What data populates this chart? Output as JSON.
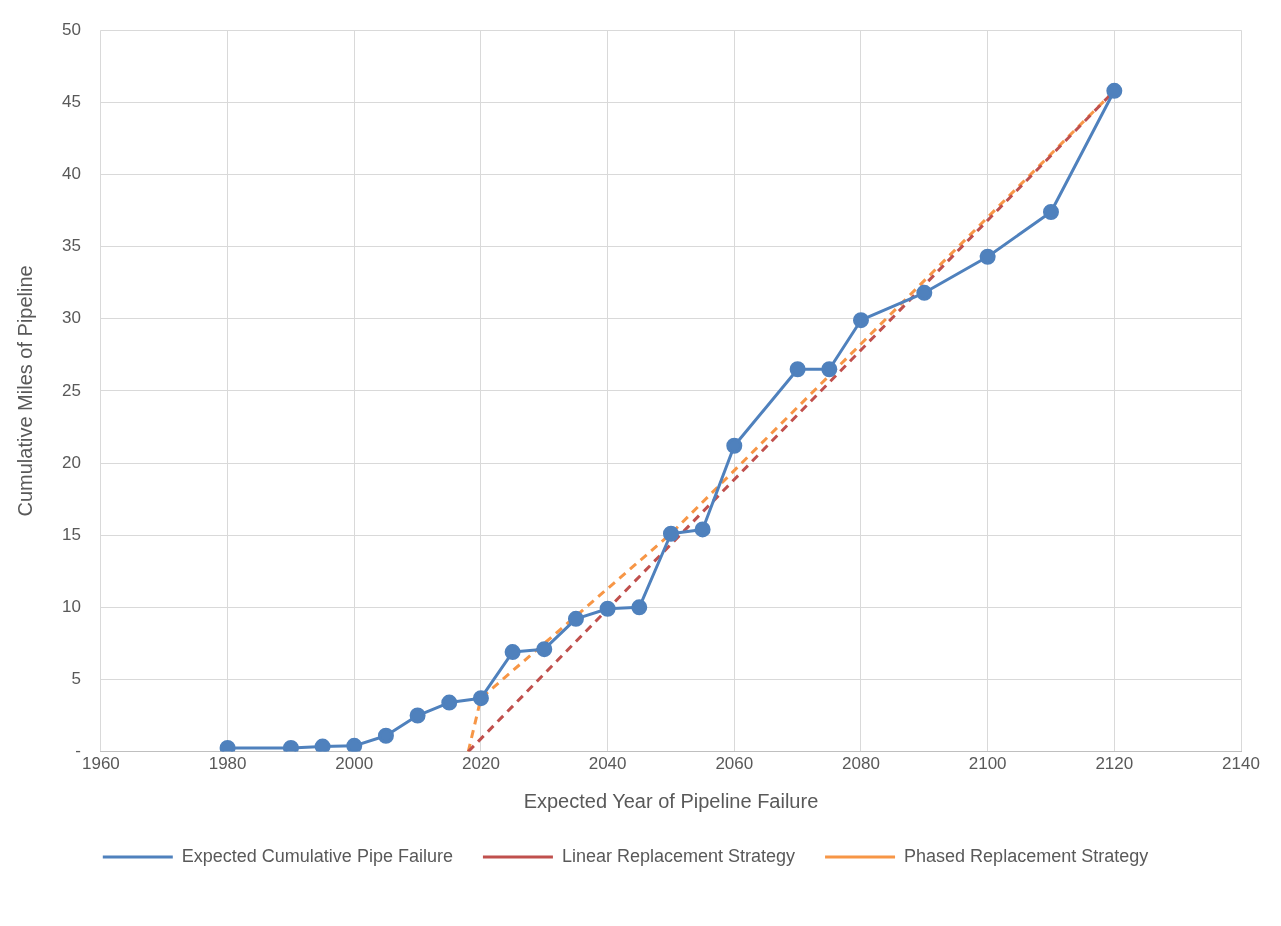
{
  "chart_data": {
    "type": "line",
    "xlabel": "Expected Year of Pipeline Failure",
    "ylabel": "Cumulative Miles of Pipeline",
    "xlim": [
      1960,
      2140
    ],
    "xticks": [
      1960,
      1980,
      2000,
      2020,
      2040,
      2060,
      2080,
      2100,
      2120,
      2140
    ],
    "ylim": [
      0,
      50
    ],
    "yticks": [
      {
        "value": 0,
        "label": "-"
      },
      5,
      10,
      15,
      20,
      25,
      30,
      35,
      40,
      45,
      50
    ],
    "grid": true,
    "legend": "bottom",
    "series": [
      {
        "name": "Expected Cumulative Pipe Failure",
        "color": "#4f81bd",
        "marker": "circle",
        "line_style": "solid",
        "x": [
          1980,
          1990,
          1995,
          2000,
          2005,
          2010,
          2015,
          2020,
          2025,
          2030,
          2035,
          2040,
          2045,
          2050,
          2055,
          2060,
          2070,
          2075,
          2080,
          2090,
          2100,
          2110,
          2120
        ],
        "values": [
          0.25,
          0.25,
          0.35,
          0.4,
          1.1,
          2.5,
          3.4,
          3.7,
          6.9,
          7.1,
          9.2,
          9.9,
          10.0,
          15.1,
          15.4,
          21.2,
          26.5,
          26.5,
          29.9,
          31.8,
          34.3,
          37.4,
          45.8
        ]
      },
      {
        "name": "Linear Replacement Strategy",
        "color": "#c0504d",
        "marker": "none",
        "line_style": "dashed",
        "x": [
          2018,
          2120
        ],
        "values": [
          0,
          45.8
        ]
      },
      {
        "name": "Phased Replacement Strategy",
        "color": "#f79646",
        "marker": "none",
        "line_style": "dashed",
        "x": [
          2018,
          2020,
          2050,
          2120
        ],
        "values": [
          0,
          3.7,
          15.1,
          45.8
        ]
      }
    ]
  }
}
